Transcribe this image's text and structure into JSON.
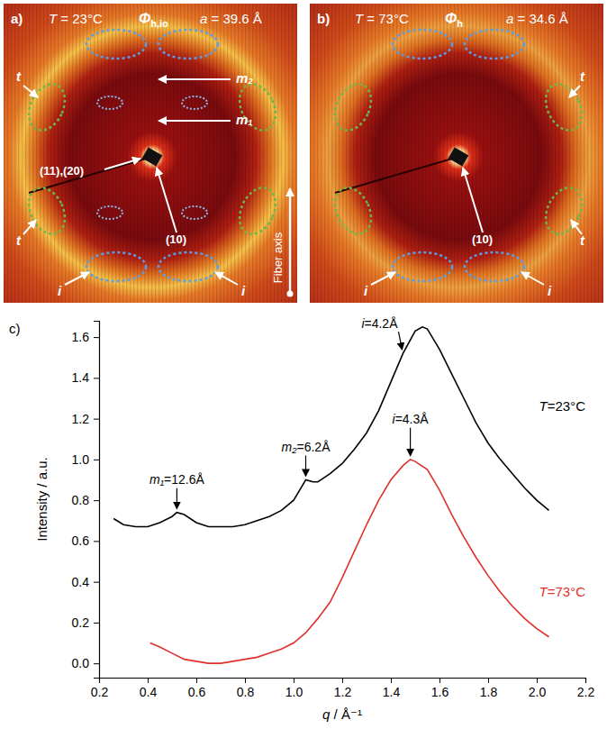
{
  "diffraction_panels": [
    {
      "letter": "a)",
      "temperature": "T = 23°C",
      "phase_symbol": "Φ",
      "phase_subscript": "h,io",
      "lattice": "a = 39.6 Å",
      "labels": [
        "t",
        "t",
        "i",
        "i",
        "m₂",
        "m₁",
        "(11),(20)",
        "(10)"
      ],
      "axis_label": "Fiber axis"
    },
    {
      "letter": "b)",
      "temperature": "T = 73°C",
      "phase_symbol": "Φ",
      "phase_subscript": "h",
      "lattice": "a = 34.6 Å",
      "labels": [
        "(10)",
        "t",
        "t",
        "i",
        "i"
      ]
    }
  ],
  "chart_data": {
    "type": "line",
    "letter": "c)",
    "x_label": "q / Å⁻¹",
    "y_label": "Intensity / a.u.",
    "xlim": [
      0.2,
      2.2
    ],
    "xticks": [
      0.2,
      0.4,
      0.6,
      0.8,
      {
        "value": 1,
        "label": "1.0"
      },
      1.2,
      1.4,
      1.6,
      1.8,
      {
        "value": 2,
        "label": "2.0"
      },
      2.2
    ],
    "ylim": [
      -0.07,
      1.68
    ],
    "yticks": [
      {
        "value": 0,
        "label": "0.0"
      },
      0.2,
      0.4,
      0.6,
      0.8,
      {
        "value": 1,
        "label": "1.0"
      },
      1.2,
      1.4,
      1.6
    ],
    "series": [
      {
        "name": "T=23°C",
        "color": "#000000",
        "x": [
          0.26,
          0.3,
          0.35,
          0.4,
          0.45,
          0.5,
          0.52,
          0.55,
          0.6,
          0.65,
          0.7,
          0.75,
          0.8,
          0.85,
          0.9,
          0.95,
          1.0,
          1.03,
          1.05,
          1.08,
          1.1,
          1.15,
          1.2,
          1.25,
          1.3,
          1.35,
          1.4,
          1.45,
          1.5,
          1.53,
          1.55,
          1.6,
          1.65,
          1.7,
          1.75,
          1.8,
          1.85,
          1.9,
          1.95,
          2.0,
          2.05
        ],
        "values": [
          0.71,
          0.68,
          0.67,
          0.67,
          0.69,
          0.72,
          0.74,
          0.73,
          0.69,
          0.67,
          0.67,
          0.67,
          0.68,
          0.7,
          0.72,
          0.75,
          0.8,
          0.86,
          0.9,
          0.89,
          0.89,
          0.93,
          0.98,
          1.05,
          1.13,
          1.24,
          1.38,
          1.52,
          1.63,
          1.65,
          1.64,
          1.54,
          1.42,
          1.3,
          1.18,
          1.08,
          1.0,
          0.93,
          0.86,
          0.8,
          0.75
        ],
        "peaks": [
          {
            "text": "m₁=12.6Å",
            "x": 0.52
          },
          {
            "text": "m₂=6.2Å",
            "x": 1.05
          },
          {
            "text": "i=4.2Å",
            "x": 1.45
          }
        ]
      },
      {
        "name": "T=73°C",
        "color": "#e0302a",
        "x": [
          0.41,
          0.45,
          0.5,
          0.55,
          0.6,
          0.65,
          0.7,
          0.75,
          0.8,
          0.85,
          0.9,
          0.95,
          1.0,
          1.05,
          1.1,
          1.15,
          1.2,
          1.25,
          1.3,
          1.35,
          1.4,
          1.45,
          1.48,
          1.5,
          1.55,
          1.6,
          1.65,
          1.7,
          1.75,
          1.8,
          1.85,
          1.9,
          1.95,
          2.0,
          2.05
        ],
        "values": [
          0.1,
          0.08,
          0.05,
          0.02,
          0.01,
          0.0,
          0.0,
          0.01,
          0.02,
          0.03,
          0.05,
          0.07,
          0.1,
          0.15,
          0.22,
          0.3,
          0.42,
          0.55,
          0.68,
          0.8,
          0.9,
          0.97,
          1.0,
          0.99,
          0.95,
          0.85,
          0.73,
          0.62,
          0.52,
          0.43,
          0.35,
          0.28,
          0.22,
          0.17,
          0.13
        ],
        "peaks": [
          {
            "text": "i=4.3Å",
            "x": 1.48
          }
        ]
      }
    ]
  }
}
